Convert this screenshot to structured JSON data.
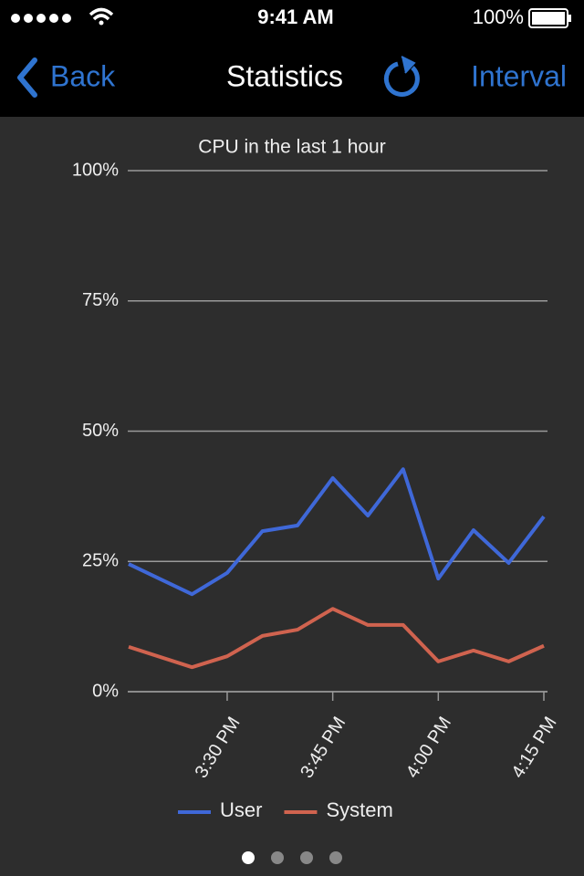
{
  "status_bar": {
    "time": "9:41 AM",
    "battery": "100%"
  },
  "nav_bar": {
    "back": "Back",
    "title": "Statistics",
    "right": "Interval"
  },
  "chart_data": {
    "type": "line",
    "title": "CPU in the last 1 hour",
    "x": [
      "15:16",
      "15:25",
      "15:30",
      "15:35",
      "15:40",
      "15:45",
      "15:50",
      "15:55",
      "16:00",
      "16:05",
      "16:10",
      "16:15"
    ],
    "xlim": [
      "15:16",
      "16:15"
    ],
    "xticks": [
      {
        "value": "15:30",
        "label": "3:30 PM"
      },
      {
        "value": "15:45",
        "label": "3:45 PM"
      },
      {
        "value": "16:00",
        "label": "4:00 PM"
      },
      {
        "value": "16:15",
        "label": "4:15 PM"
      }
    ],
    "ylim": [
      0,
      100
    ],
    "yticks": [
      {
        "value": 0,
        "label": "0%"
      },
      {
        "value": 25,
        "label": "25%"
      },
      {
        "value": 50,
        "label": "50%"
      },
      {
        "value": 75,
        "label": "75%"
      },
      {
        "value": 100,
        "label": "100%"
      }
    ],
    "grid": true,
    "legend": "bottom",
    "series": [
      {
        "name": "User",
        "color": "#3f68d8",
        "values": [
          24.5,
          18.7,
          22.8,
          30.8,
          31.9,
          41,
          33.8,
          42.7,
          21.7,
          31,
          24.7,
          33.6
        ]
      },
      {
        "name": "System",
        "color": "#d0634f",
        "values": [
          8.6,
          4.7,
          6.8,
          10.7,
          11.9,
          15.9,
          12.8,
          12.8,
          5.8,
          7.9,
          5.8,
          8.8
        ]
      }
    ]
  }
}
